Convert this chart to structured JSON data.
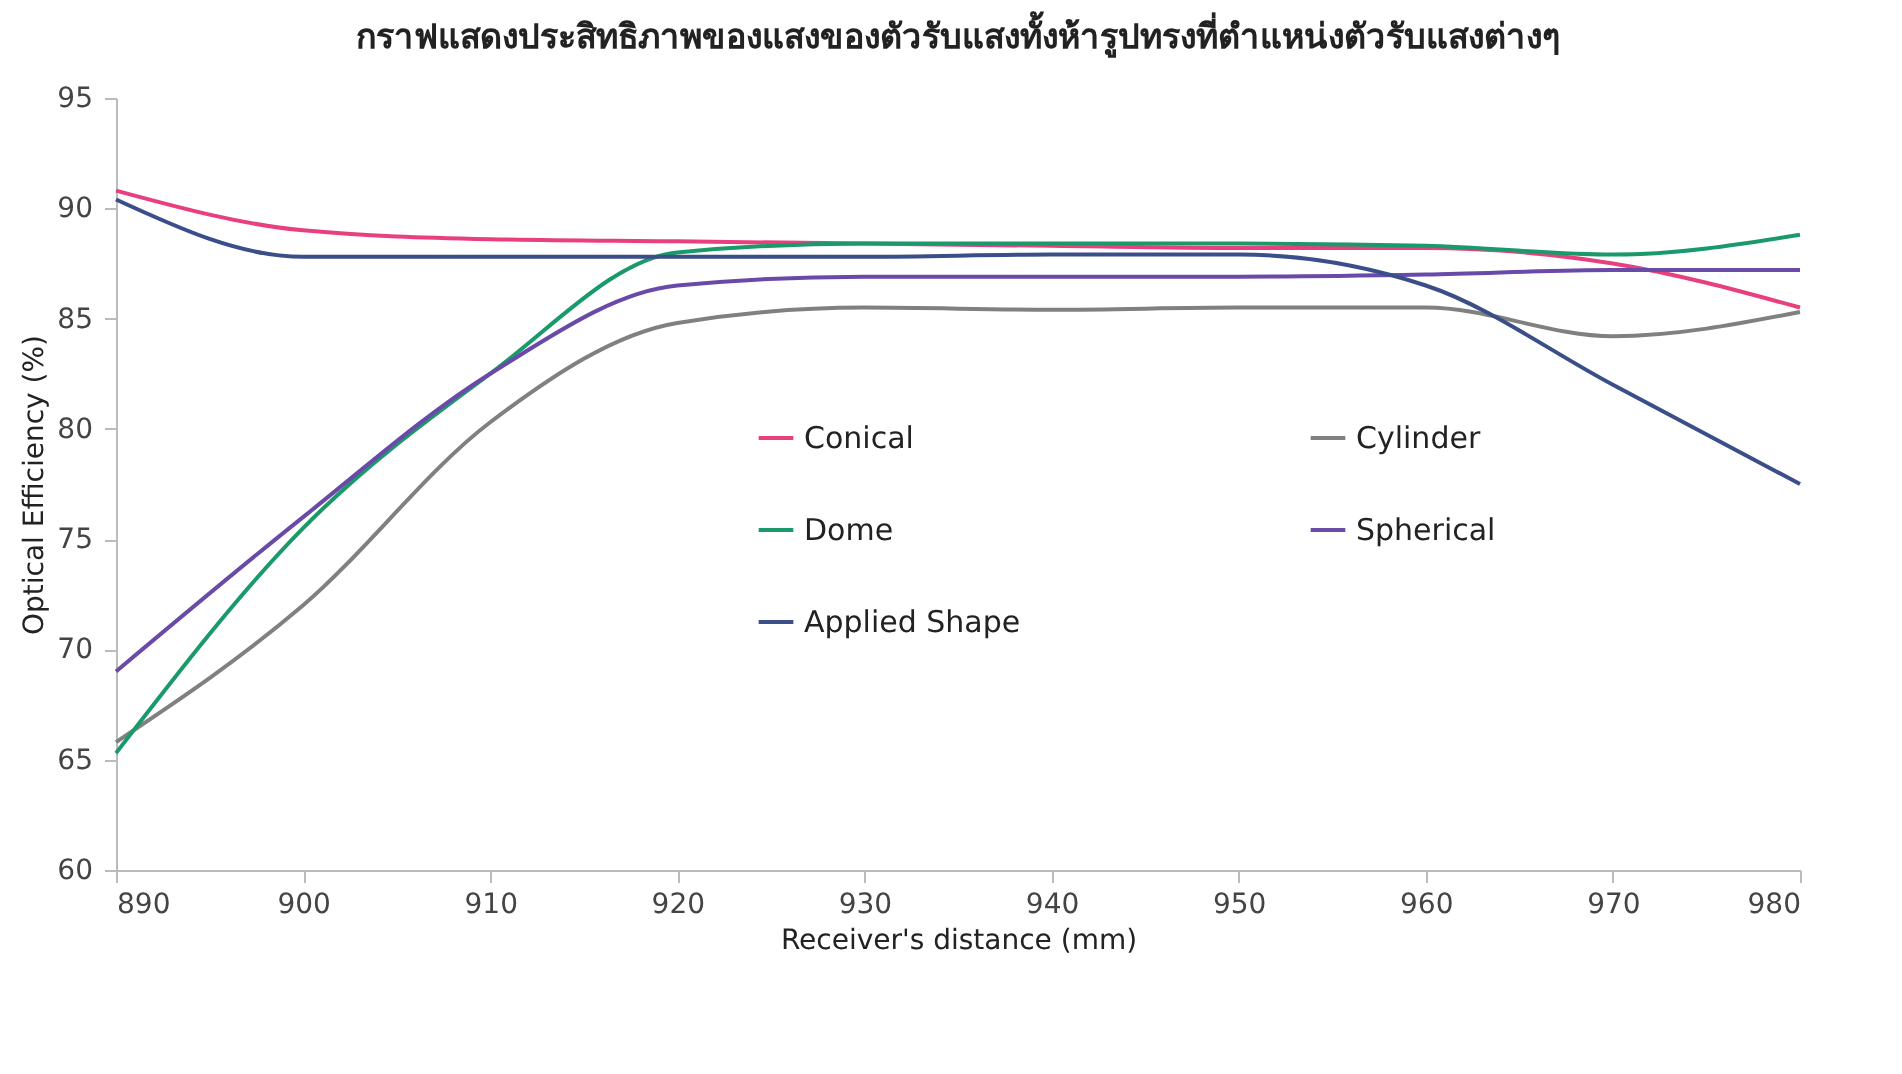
{
  "chart_data": {
    "type": "line",
    "title": "กราฟแสดงประสิทธิภาพของแสงของตัวรับแสงทั้งห้ารูปทรงที่ตำแหน่งตัวรับแสงต่างๆ",
    "xlabel": "Receiver's distance (mm)",
    "ylabel": "Optical Efficiency (%)",
    "x": [
      890,
      900,
      910,
      920,
      930,
      940,
      950,
      960,
      970,
      980
    ],
    "xlim": [
      890,
      980
    ],
    "xticks": [
      890,
      900,
      910,
      920,
      930,
      940,
      950,
      960,
      970,
      980
    ],
    "ylim": [
      60,
      95
    ],
    "yticks": [
      60,
      65,
      70,
      75,
      80,
      85,
      90,
      95
    ],
    "grid": false,
    "legend": "center",
    "marker": "none",
    "line_style": "solid",
    "series": [
      {
        "name": "Conical",
        "color": "#e8407f",
        "values": [
          90.8,
          89.0,
          88.6,
          88.5,
          88.4,
          88.3,
          88.2,
          88.2,
          87.5,
          85.5
        ]
      },
      {
        "name": "Cylinder",
        "color": "#808080",
        "values": [
          65.8,
          72.0,
          80.3,
          84.8,
          85.5,
          85.4,
          85.5,
          85.5,
          84.2,
          85.3
        ]
      },
      {
        "name": "Dome",
        "color": "#1a9a6a",
        "values": [
          65.3,
          75.5,
          82.5,
          88.0,
          88.4,
          88.4,
          88.4,
          88.3,
          87.9,
          88.8
        ]
      },
      {
        "name": "Spherical",
        "color": "#6a4aa8",
        "values": [
          69.0,
          76.0,
          82.5,
          86.5,
          86.9,
          86.9,
          86.9,
          87.0,
          87.2,
          87.2
        ]
      },
      {
        "name": "Applied Shape",
        "color": "#3a4e8a",
        "values": [
          90.4,
          87.8,
          87.8,
          87.8,
          87.8,
          87.9,
          87.9,
          86.5,
          82.0,
          77.5
        ]
      }
    ]
  }
}
